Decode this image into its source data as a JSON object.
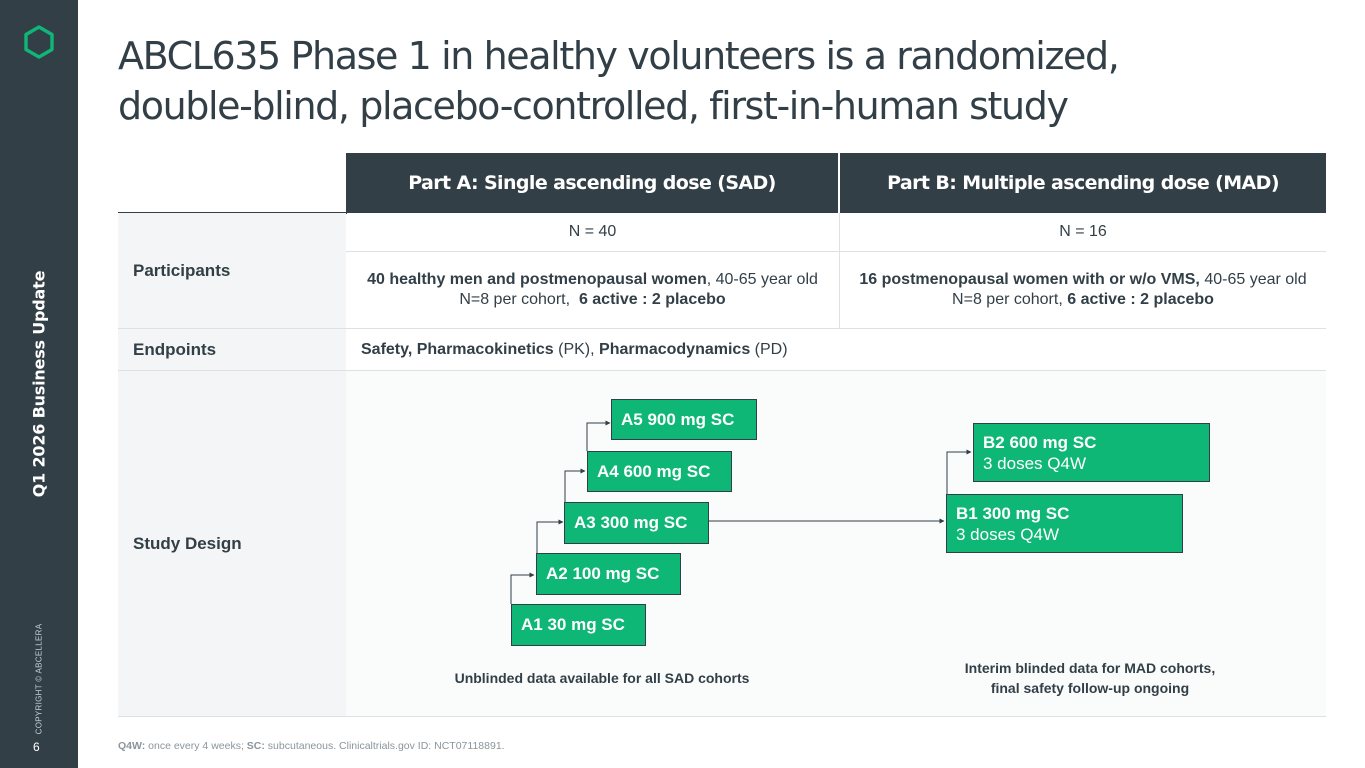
{
  "sidebar": {
    "section_title": "Q1 2026 Business Update",
    "copyright": "COPYRIGHT © ABCELLERA",
    "page_number": "6",
    "logo_icon": "hexagon-logo-icon",
    "accent_color": "#0fb777"
  },
  "title": {
    "line1": "ABCL635 Phase 1 in healthy volunteers is a randomized,",
    "line2": "double-blind, placebo-controlled, first-in-human study"
  },
  "table": {
    "header_a": "Part A: Single ascending dose (SAD)",
    "header_b": "Part B: Multiple ascending dose (MAD)",
    "participants": {
      "label": "Participants",
      "n_a": "N = 40",
      "n_b": "N = 16",
      "a_bold": "40 healthy men and postmenopausal women",
      "a_rest": ", 40-65 year old",
      "a_line2_plain": "N=8 per cohort,  ",
      "a_line2_bold": "6 active : 2 placebo",
      "b_bold": "16 postmenopausal women with or w/o VMS,",
      "b_rest": " 40-65 year old",
      "b_line2_plain": "N=8 per cohort, ",
      "b_line2_bold": "6 active : 2 placebo"
    },
    "endpoints": {
      "label": "Endpoints",
      "part1_bold": "Safety, Pharmacokinetics",
      "part1_plain": " (PK), ",
      "part2_bold": "Pharmacodynamics",
      "part2_plain": " (PD)"
    },
    "study_design": {
      "label": "Study Design",
      "sad_cohorts": [
        "A1 30 mg SC",
        "A2 100 mg SC",
        "A3 300 mg SC",
        "A4 600 mg SC",
        "A5 900 mg SC"
      ],
      "mad_cohorts": [
        {
          "dose": "B1 300 mg SC",
          "schedule": "3 doses Q4W"
        },
        {
          "dose": "B2 600 mg SC",
          "schedule": "3 doses Q4W"
        }
      ],
      "sad_caption": "Unblinded data available for all SAD cohorts",
      "mad_caption_line1": "Interim blinded data for MAD cohorts,",
      "mad_caption_line2": "final safety follow-up ongoing"
    }
  },
  "footnote": {
    "q4w_label": "Q4W:",
    "q4w_text": " once every 4 weeks; ",
    "sc_label": "SC:",
    "sc_text": " subcutaneous. Clinicaltrials.gov ID: NCT07118891."
  }
}
